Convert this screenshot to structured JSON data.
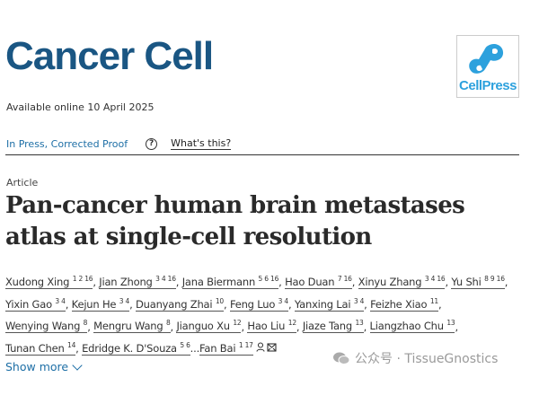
{
  "journal": {
    "title": "Cancer Cell",
    "available": "Available online 10 April 2025",
    "logo_text": "CellPress"
  },
  "status": {
    "label": "In Press, Corrected Proof",
    "help": "?",
    "whats_this": "What's this?"
  },
  "article": {
    "type": "Article",
    "title": "Pan-cancer human brain metastases atlas at single-cell resolution"
  },
  "authors": [
    {
      "name": "Xudong Xing",
      "sup": "1 2 16"
    },
    {
      "name": "Jian Zhong",
      "sup": "3 4 16"
    },
    {
      "name": "Jana Biermann",
      "sup": "5 6 16"
    },
    {
      "name": "Hao Duan",
      "sup": "7 16"
    },
    {
      "name": "Xinyu Zhang",
      "sup": "3 4 16"
    },
    {
      "name": "Yu Shi",
      "sup": "8 9 16"
    },
    {
      "name": "Yixin Gao",
      "sup": "3 4"
    },
    {
      "name": "Kejun He",
      "sup": "3 4"
    },
    {
      "name": "Duanyang Zhai",
      "sup": "10"
    },
    {
      "name": "Feng Luo",
      "sup": "3 4"
    },
    {
      "name": "Yanxing Lai",
      "sup": "3 4"
    },
    {
      "name": "Feizhe Xiao",
      "sup": "11"
    },
    {
      "name": "Wenying Wang",
      "sup": "8"
    },
    {
      "name": "Mengru Wang",
      "sup": "8"
    },
    {
      "name": "Jianguo Xu",
      "sup": "12"
    },
    {
      "name": "Hao Liu",
      "sup": "12"
    },
    {
      "name": "Jiaze Tang",
      "sup": "13"
    },
    {
      "name": "Liangzhao Chu",
      "sup": "13"
    },
    {
      "name": "Tunan Chen",
      "sup": "14"
    },
    {
      "name": "Edridge K. D'Souza",
      "sup": "5 6"
    },
    {
      "name": "Fan Bai",
      "sup": "1 17"
    }
  ],
  "ellipsis": "...",
  "show_more": "Show more",
  "watermark": "公众号 · TissueGnostics",
  "colors": {
    "journal": "#1a5683",
    "link": "#1e6fa6",
    "logo": "#2da1dd"
  }
}
